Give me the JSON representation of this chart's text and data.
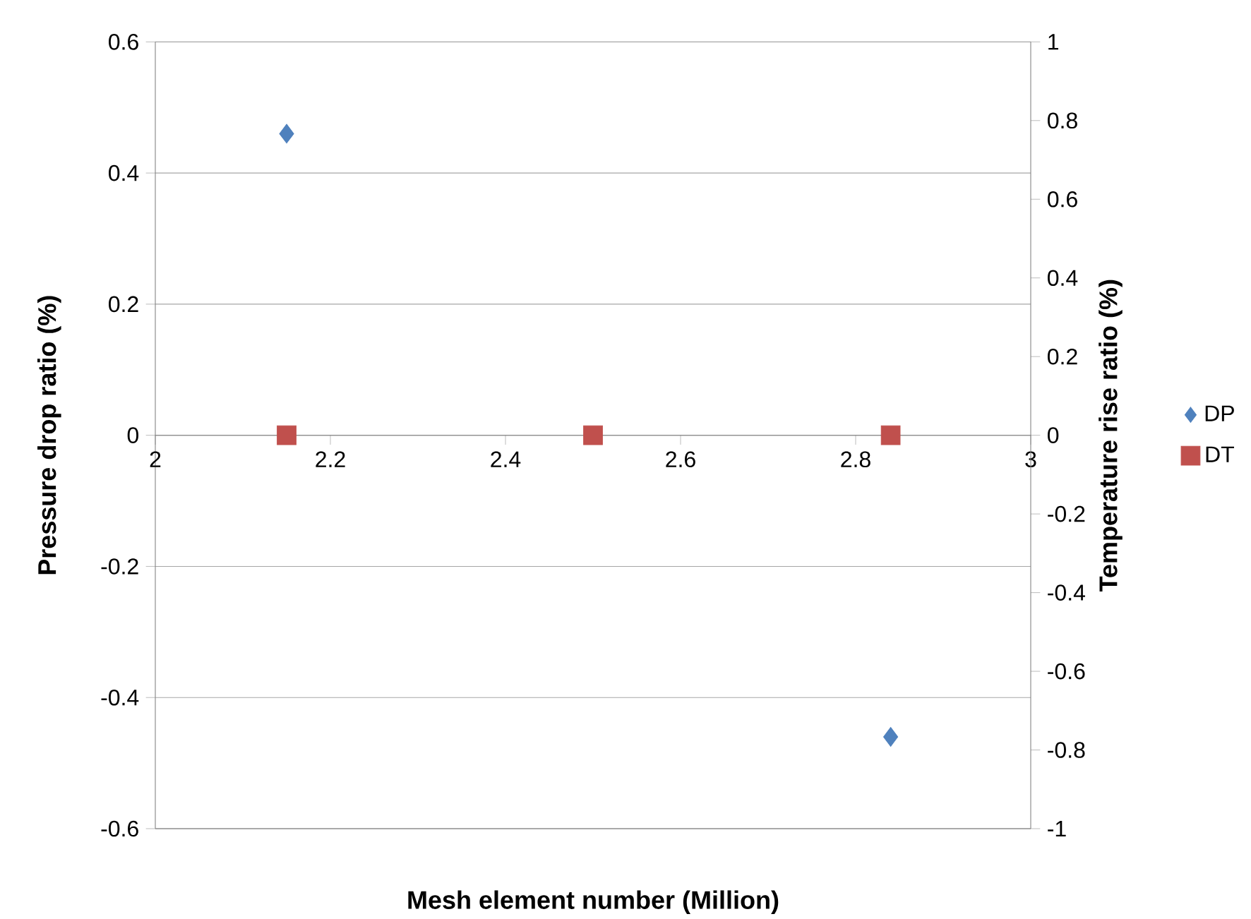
{
  "chart_data": {
    "type": "scatter",
    "x": [
      2.15,
      2.5,
      2.84
    ],
    "series": [
      {
        "name": "DP",
        "color": "#4f81bd",
        "marker": "diamond",
        "values": [
          0.46,
          null,
          -0.46
        ]
      },
      {
        "name": "DT",
        "color": "#c0504d",
        "marker": "square",
        "axis": "y2",
        "values": [
          0,
          0,
          0
        ]
      }
    ],
    "xlabel": "Mesh element number (Million)",
    "ylabel": "Pressure drop ratio (%)",
    "y2label": "Temperature rise ratio (%)",
    "xlim": [
      2,
      3
    ],
    "xticks": [
      2,
      2.2,
      2.4,
      2.6,
      2.8,
      3
    ],
    "ylim": [
      -0.6,
      0.6
    ],
    "yticks": [
      -0.6,
      -0.4,
      -0.2,
      0,
      0.2,
      0.4,
      0.6
    ],
    "y2lim": [
      -1,
      1
    ],
    "y2ticks": [
      -1,
      -0.8,
      -0.6,
      -0.4,
      -0.2,
      0,
      0.2,
      0.4,
      0.6,
      0.8,
      1
    ],
    "grid": "y",
    "legend": "right"
  }
}
